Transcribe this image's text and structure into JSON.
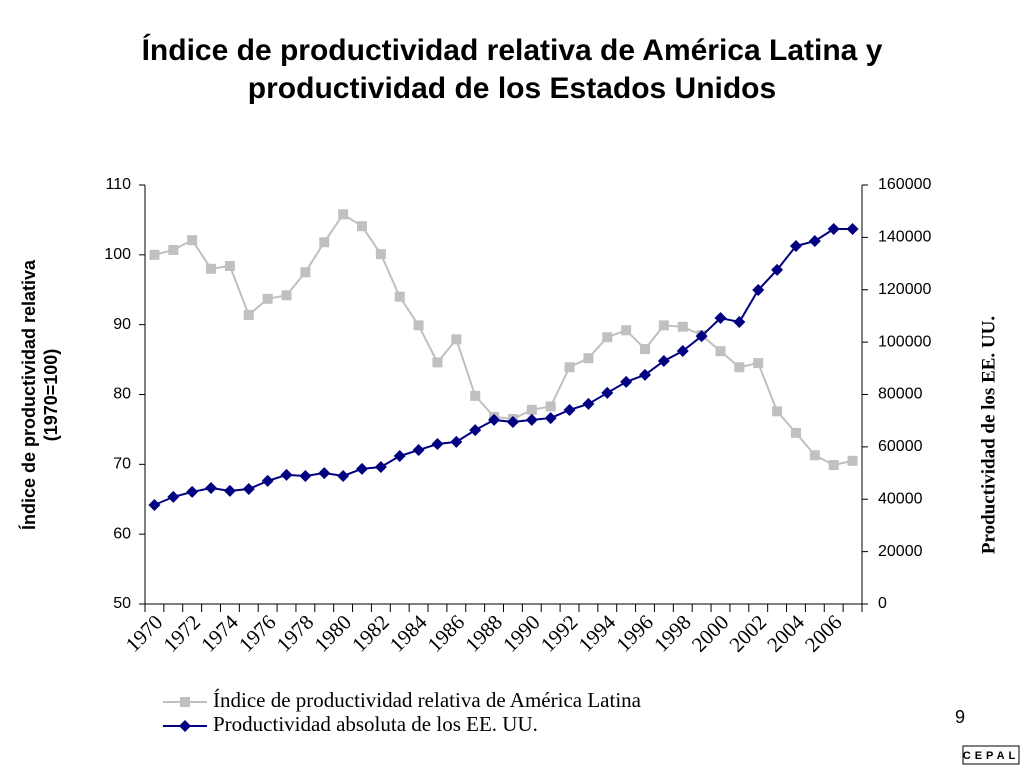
{
  "chart_data": {
    "type": "line",
    "title": "Índice de productividad relativa de América Latina y productividad de los Estados Unidos",
    "ylabel": [
      "Índice de productividad relativa",
      "(1970=100)"
    ],
    "y2label": "Productividad de los EE. UU.",
    "categories": [
      "1970",
      null,
      "1972",
      null,
      "1974",
      null,
      "1976",
      null,
      "1978",
      null,
      "1980",
      null,
      "1982",
      null,
      "1984",
      null,
      "1986",
      null,
      "1988",
      null,
      "1990",
      null,
      "1992",
      null,
      "1994",
      null,
      "1996",
      null,
      "1998",
      null,
      "2000",
      null,
      "2002",
      null,
      "2004",
      null,
      "2006",
      null
    ],
    "ylim": [
      50,
      110
    ],
    "yticks": [
      50,
      60,
      70,
      80,
      90,
      100,
      110
    ],
    "y2lim": [
      0,
      160000
    ],
    "y2ticks": [
      0,
      20000,
      40000,
      60000,
      80000,
      100000,
      120000,
      140000,
      160000
    ],
    "legend": "bottom",
    "series": [
      {
        "name": "Índice de productividad relativa de América Latina",
        "color": "#c0c0c0",
        "marker": "square",
        "values": [
          100,
          100.7,
          102.1,
          98.0,
          98.4,
          91.4,
          93.7,
          94.2,
          97.5,
          101.8,
          105.8,
          104.1,
          100.1,
          94.0,
          89.9,
          84.6,
          87.9,
          79.8,
          76.8,
          76.5,
          77.8,
          78.3,
          83.9,
          85.2,
          88.2,
          89.2,
          86.5,
          89.9,
          89.7,
          88.5,
          86.2,
          83.9,
          84.5,
          77.6,
          74.5,
          71.3,
          69.9,
          70.5
        ]
      },
      {
        "name": "Productividad absoluta de los EE. UU.",
        "color": "#000080",
        "marker": "diamond",
        "axis": "y2",
        "values": [
          37800,
          40900,
          42800,
          44300,
          43200,
          43900,
          47000,
          49300,
          48900,
          50000,
          48900,
          51600,
          52300,
          56500,
          58800,
          61100,
          61900,
          66400,
          70300,
          69500,
          70300,
          71000,
          74100,
          76400,
          80600,
          84800,
          87500,
          92800,
          96600,
          102300,
          109200,
          107700,
          119900,
          127600,
          136700,
          138600,
          143200,
          143200
        ]
      }
    ]
  },
  "page_number": "9",
  "logo": "CEPAL"
}
